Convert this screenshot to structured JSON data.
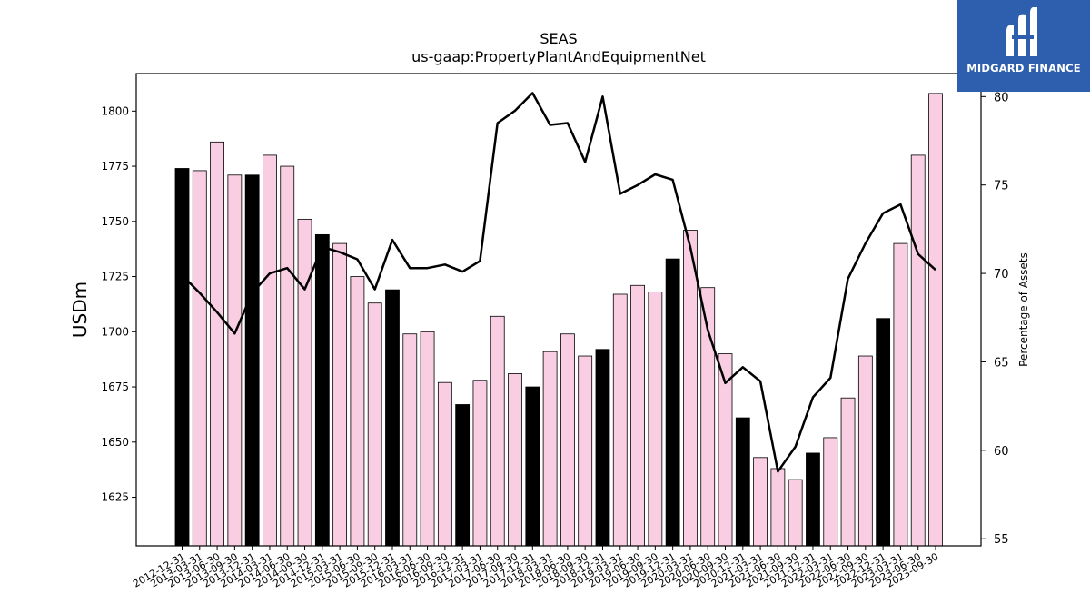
{
  "brand": {
    "name": "MIDGARD FINANCE",
    "logo_color": "#2d5fae"
  },
  "colors": {
    "bar_pink": "#f9cde2",
    "bar_dark": "#000000",
    "line": "#000000"
  },
  "chart_data": {
    "type": "bar",
    "title": "SEAS",
    "subtitle": "us-gaap:PropertyPlantAndEquipmentNet",
    "ylabel": "USDm",
    "ylabel_right": "Percentage of Assets",
    "ylim": [
      1603,
      1817
    ],
    "ylim_right": [
      54.6,
      81.3
    ],
    "yticks": [
      1625,
      1650,
      1675,
      1700,
      1725,
      1750,
      1775,
      1800
    ],
    "yticks_right": [
      55,
      60,
      65,
      70,
      75,
      80
    ],
    "categories": [
      "2012-12-31",
      "2013-03-31",
      "2013-06-30",
      "2013-09-30",
      "2013-12-31",
      "2014-03-31",
      "2014-06-30",
      "2014-09-30",
      "2014-12-31",
      "2015-03-31",
      "2015-06-30",
      "2015-09-30",
      "2015-12-31",
      "2016-03-31",
      "2016-06-30",
      "2016-09-30",
      "2016-12-31",
      "2017-03-31",
      "2017-06-30",
      "2017-09-30",
      "2017-12-31",
      "2018-03-31",
      "2018-06-30",
      "2018-09-30",
      "2018-12-31",
      "2019-03-31",
      "2019-06-30",
      "2019-09-30",
      "2019-12-31",
      "2020-03-31",
      "2020-06-30",
      "2020-09-30",
      "2020-12-31",
      "2021-03-31",
      "2021-06-30",
      "2021-09-30",
      "2021-12-31",
      "2022-03-31",
      "2022-06-30",
      "2022-09-30",
      "2022-12-31",
      "2023-03-31",
      "2023-06-30",
      "2023-09-30"
    ],
    "series": [
      {
        "type": "bar",
        "values": [
          1774,
          1773,
          1786,
          1771,
          1771,
          1780,
          1775,
          1751,
          1744,
          1740,
          1725,
          1713,
          1719,
          1699,
          1700,
          1677,
          1667,
          1678,
          1707,
          1681,
          1675,
          1691,
          1699,
          1689,
          1692,
          1717,
          1721,
          1718,
          1733,
          1746,
          1720,
          1690,
          1661,
          1643,
          1638,
          1633,
          1645,
          1652,
          1670,
          1689,
          1706,
          1740,
          1780,
          1808
        ],
        "highlight": [
          true,
          false,
          false,
          false,
          true,
          false,
          false,
          false,
          true,
          false,
          false,
          false,
          true,
          false,
          false,
          false,
          true,
          false,
          false,
          false,
          true,
          false,
          false,
          false,
          true,
          false,
          false,
          false,
          true,
          false,
          false,
          false,
          true,
          false,
          false,
          false,
          true,
          false,
          false,
          false,
          true,
          false,
          false,
          false
        ]
      },
      {
        "type": "line",
        "axis": "right",
        "values": [
          69.9,
          68.9,
          67.8,
          66.6,
          68.9,
          70.0,
          70.3,
          69.1,
          71.5,
          71.2,
          70.8,
          69.1,
          71.9,
          70.3,
          70.3,
          70.5,
          70.1,
          70.7,
          78.5,
          79.2,
          80.2,
          78.4,
          78.5,
          76.3,
          80.0,
          74.5,
          75.0,
          75.6,
          75.3,
          71.5,
          66.8,
          63.8,
          64.7,
          63.9,
          58.8,
          60.2,
          63.0,
          64.1,
          69.7,
          71.7,
          73.4,
          73.9,
          71.1,
          70.2
        ]
      }
    ]
  }
}
